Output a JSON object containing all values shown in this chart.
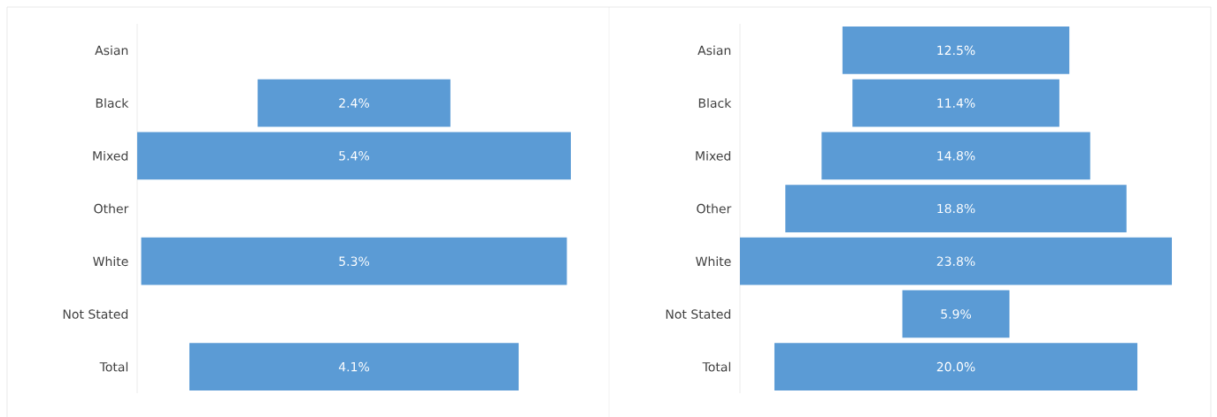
{
  "chart_data": [
    {
      "type": "other",
      "categories": [
        "Asian",
        "Black",
        "Mixed",
        "Other",
        "White",
        "Not Stated",
        "Total"
      ],
      "values": [
        null,
        2.4,
        5.4,
        null,
        5.3,
        null,
        4.1
      ],
      "value_labels": [
        null,
        "2.4%",
        "5.4%",
        null,
        "5.3%",
        null,
        "4.1%"
      ],
      "color": "#5b9bd5"
    },
    {
      "type": "other",
      "categories": [
        "Asian",
        "Black",
        "Mixed",
        "Other",
        "White",
        "Not Stated",
        "Total"
      ],
      "values": [
        12.5,
        11.4,
        14.8,
        18.8,
        23.8,
        5.9,
        20.0
      ],
      "value_labels": [
        "12.5%",
        "11.4%",
        "14.8%",
        "18.8%",
        "23.8%",
        "5.9%",
        "20.0%"
      ],
      "color": "#5b9bd5"
    }
  ]
}
